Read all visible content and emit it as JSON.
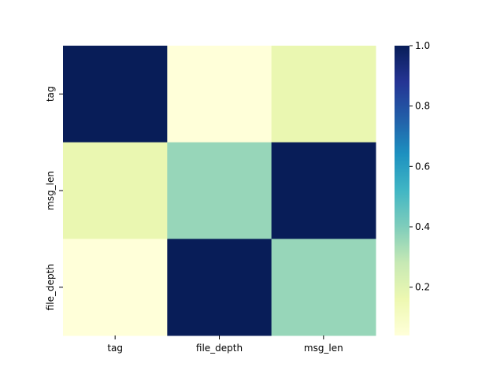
{
  "chart_data": {
    "type": "heatmap",
    "title": "",
    "xlabel": "",
    "ylabel": "",
    "x_categories": [
      "tag",
      "file_depth",
      "msg_len"
    ],
    "y_categories": [
      "tag",
      "msg_len",
      "file_depth"
    ],
    "values": [
      [
        1.0,
        0.04,
        0.17
      ],
      [
        0.17,
        0.36,
        1.0
      ],
      [
        0.04,
        1.0,
        0.36
      ]
    ],
    "colorbar": {
      "colormap": "YlGnBu",
      "range": [
        0.04,
        1.0
      ],
      "ticks": [
        0.2,
        0.4,
        0.6,
        0.8,
        1.0
      ],
      "tick_labels": [
        "0.2",
        "0.4",
        "0.6",
        "0.8",
        "1.0"
      ]
    },
    "grid": false,
    "legend": "colorbar-right"
  }
}
